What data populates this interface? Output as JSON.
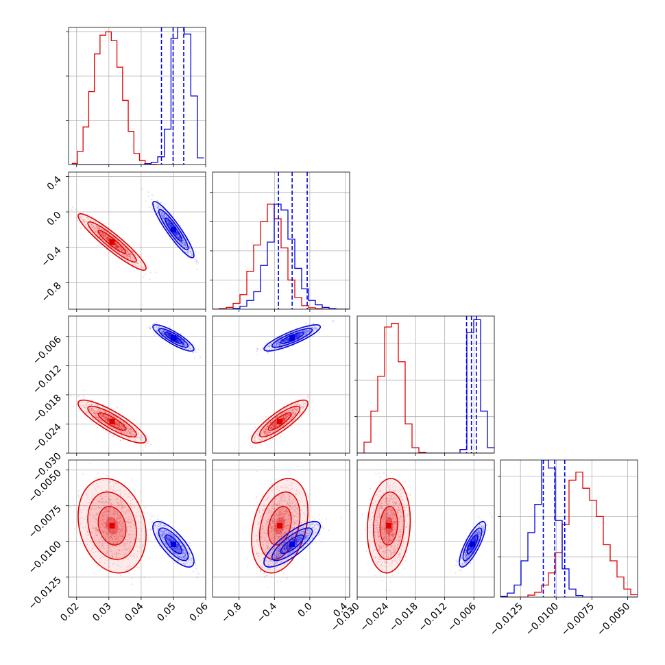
{
  "chart_data": {
    "type": "corner",
    "grid": true,
    "colors": {
      "red": "#e00000",
      "blue": "#0000e0"
    },
    "parameters": [
      {
        "range": [
          0.0175,
          0.06
        ],
        "ticks": [
          0.02,
          0.03,
          0.04,
          0.05,
          0.06
        ],
        "tick_labels": [
          "0.02",
          "0.03",
          "0.04",
          "0.05",
          "0.06"
        ],
        "hist_ticks": [
          2,
          4,
          6
        ],
        "hist_ymax": 6.2
      },
      {
        "range": [
          -1.1,
          0.45
        ],
        "ticks": [
          -0.8,
          -0.4,
          0.0,
          0.4
        ],
        "tick_labels": [
          "−0.8",
          "−0.4",
          "0.0",
          "0.4"
        ],
        "hist_ticks": [
          1,
          2,
          3,
          4
        ],
        "hist_ymax": 4.7
      },
      {
        "range": [
          -0.03,
          -0.0018
        ],
        "ticks": [
          -0.03,
          -0.024,
          -0.018,
          -0.012,
          -0.006
        ],
        "tick_labels": [
          "−0.030",
          "−0.024",
          "−0.018",
          "−0.012",
          "−0.006"
        ],
        "hist_ticks": [
          2,
          4,
          6
        ],
        "hist_ymax": 7.5
      },
      {
        "range": [
          -0.0139,
          -0.0043
        ],
        "ticks": [
          -0.0125,
          -0.01,
          -0.0075,
          -0.005
        ],
        "tick_labels": [
          "−0.0125",
          "−0.0100",
          "−0.0075",
          "−0.0050"
        ],
        "hist_ticks": [
          1,
          2,
          3
        ],
        "hist_ymax": 3.4
      }
    ],
    "series": [
      {
        "color": "red",
        "mean": [
          0.031,
          -0.34,
          -0.0235,
          -0.0089
        ],
        "std": [
          0.0043,
          0.13,
          0.0018,
          0.00135
        ],
        "corr": [
          [
            1,
            -0.93,
            -0.85,
            -0.2
          ],
          [
            -0.93,
            1,
            0.85,
            0.3
          ],
          [
            -0.85,
            0.85,
            1,
            0.1
          ],
          [
            -0.2,
            0.3,
            0.1,
            1
          ]
        ],
        "hist": [
          [
            0.0185,
            0.0535,
            [
              0.05,
              0.6,
              1.7,
              3.3,
              5.0,
              5.85,
              6.0,
              5.6,
              4.4,
              2.9,
              1.5,
              0.5,
              0.18,
              0.04,
              0.01,
              0,
              0,
              0,
              0,
              0
            ]
          ],
          [
            -1.1,
            0.45,
            [
              0,
              0.02,
              0.06,
              0.2,
              0.5,
              1.3,
              2.2,
              3.0,
              3.6,
              3.1,
              2.1,
              1.0,
              0.4,
              0.12,
              0.05,
              0.02,
              0,
              0,
              0,
              0
            ]
          ],
          [
            -0.03,
            -0.0018,
            [
              0,
              0.6,
              2.3,
              4.2,
              6.9,
              7.1,
              5.0,
              1.6,
              0.3,
              0.05,
              0,
              0,
              0,
              0,
              0,
              0,
              0,
              0,
              0,
              0
            ]
          ],
          [
            -0.0139,
            -0.0043,
            [
              0,
              0,
              0,
              0,
              0.05,
              0.12,
              0.3,
              0.6,
              1.1,
              1.8,
              2.9,
              3.1,
              2.7,
              2.4,
              2.0,
              1.3,
              0.9,
              0.5,
              0.2,
              0.06
            ]
          ]
        ]
      },
      {
        "color": "blue",
        "mean": [
          0.05,
          -0.2,
          -0.0063,
          -0.0102
        ],
        "std": [
          0.0026,
          0.13,
          0.0011,
          0.00065
        ],
        "corr": [
          [
            1,
            -0.92,
            -0.85,
            -0.75
          ],
          [
            -0.92,
            1,
            0.85,
            0.8
          ],
          [
            -0.85,
            0.85,
            1,
            0.8
          ],
          [
            -0.75,
            0.8,
            0.8,
            1
          ]
        ],
        "quantile_lines": [
          [
            0.0463,
            0.0499,
            0.0532
          ],
          [
            -0.355,
            -0.2,
            -0.03
          ],
          [
            -0.0075,
            -0.0065,
            -0.0055
          ],
          [
            -0.0109,
            -0.0101,
            -0.0094
          ]
        ],
        "hist": [
          [
            0.0185,
            0.0595,
            [
              0,
              0,
              0,
              0,
              0,
              0,
              0,
              0,
              0,
              0,
              0,
              0.03,
              0.1,
              0.35,
              1.6,
              5.7,
              6.2,
              5.9,
              3.1,
              0.3
            ]
          ],
          [
            -1.1,
            0.45,
            [
              0,
              0,
              0,
              0.03,
              0.1,
              0.3,
              0.6,
              1.5,
              2.3,
              3.6,
              3.4,
              2.4,
              1.4,
              0.7,
              0.3,
              0.15,
              0.06,
              0.02,
              0,
              0
            ]
          ],
          [
            -0.03,
            -0.0018,
            [
              0,
              0,
              0,
              0,
              0,
              0,
              0,
              0,
              0,
              0,
              0,
              0,
              0,
              0,
              0,
              0.2,
              6.6,
              7.3,
              2.3,
              0.3
            ]
          ],
          [
            -0.0139,
            -0.0043,
            [
              0.02,
              0.1,
              0.3,
              0.9,
              1.6,
              2.3,
              3.4,
              3.2,
              1.9,
              0.7,
              0.2,
              0.04,
              0,
              0,
              0,
              0,
              0,
              0,
              0,
              0
            ]
          ]
        ]
      }
    ]
  }
}
